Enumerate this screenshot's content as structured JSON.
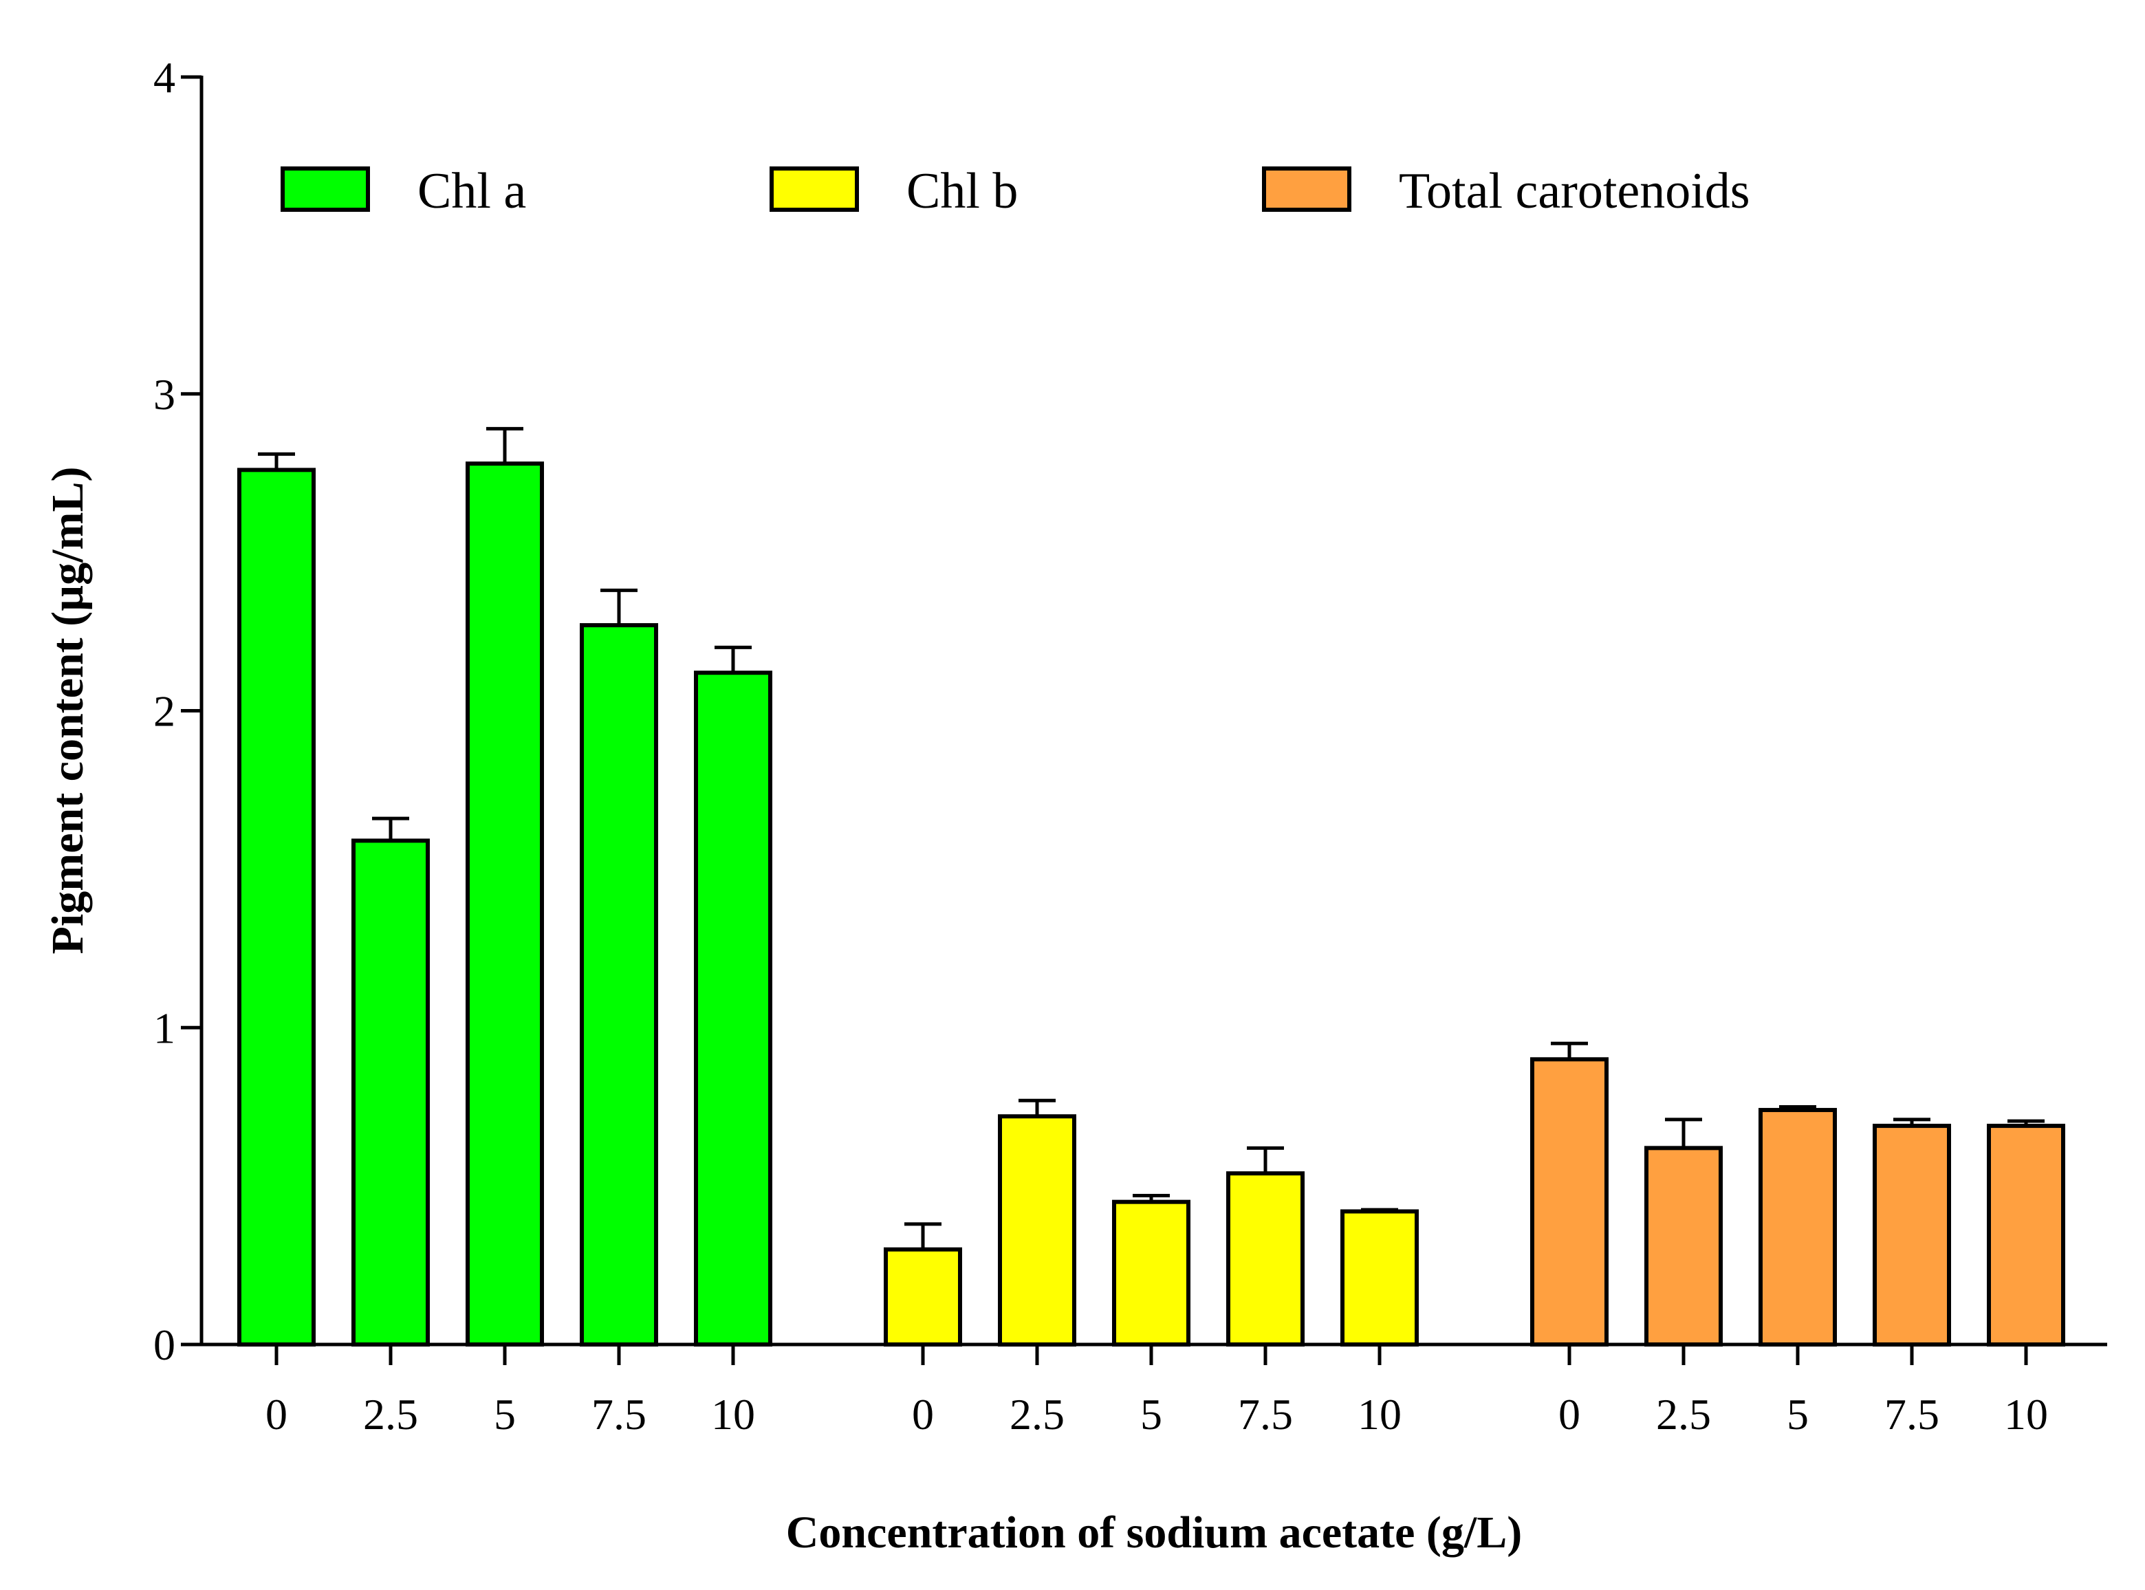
{
  "chart_data": {
    "type": "bar",
    "xlabel": "Concentration of sodium acetate (g/L)",
    "ylabel": "Pigment content (µg/mL)",
    "ylim": [
      0,
      4
    ],
    "yticks": [
      "0",
      "1",
      "2",
      "3",
      "4"
    ],
    "categories": [
      "0",
      "2.5",
      "5",
      "7.5",
      "10"
    ],
    "legend_position": "top",
    "series": [
      {
        "name": "Chl a",
        "color": "#00ff00",
        "values": [
          2.76,
          1.59,
          2.78,
          2.27,
          2.12
        ],
        "errors": [
          0.05,
          0.07,
          0.11,
          0.11,
          0.08
        ]
      },
      {
        "name": "Chl b",
        "color": "#ffff00",
        "values": [
          0.3,
          0.72,
          0.45,
          0.54,
          0.42
        ],
        "errors": [
          0.08,
          0.05,
          0.02,
          0.08,
          0.005
        ]
      },
      {
        "name": "Total carotenoids",
        "color": "#ffa040",
        "values": [
          0.9,
          0.62,
          0.74,
          0.69,
          0.69
        ],
        "errors": [
          0.05,
          0.09,
          0.01,
          0.02,
          0.015
        ]
      }
    ]
  }
}
